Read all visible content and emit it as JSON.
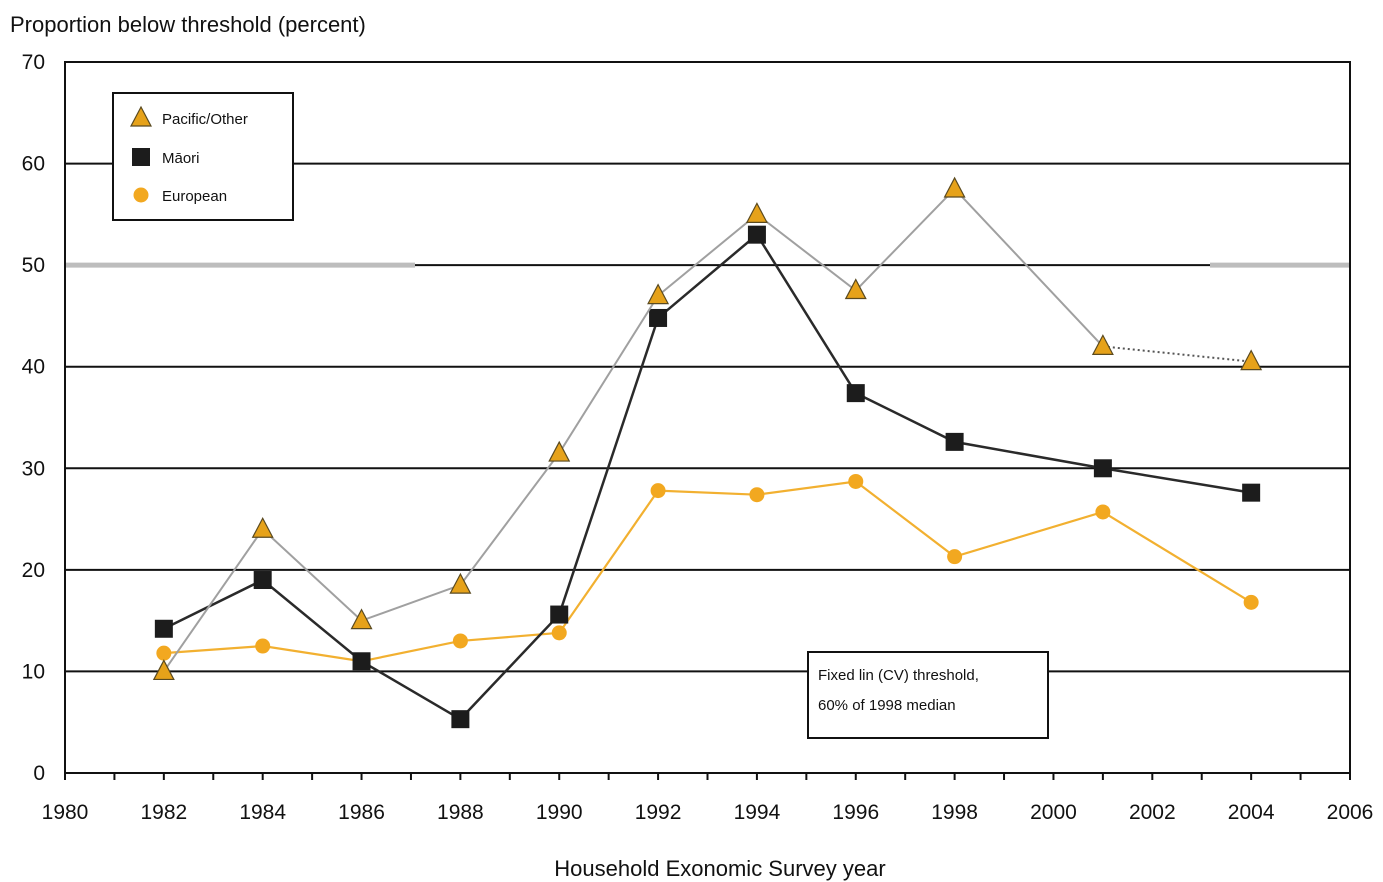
{
  "chart_data": {
    "type": "line",
    "ylabel": "Proportion below threshold (percent)",
    "xlabel": "Household Exonomic Survey year",
    "xlim": [
      1980,
      2006
    ],
    "ylim": [
      0,
      70
    ],
    "x_ticks": [
      1980,
      1982,
      1984,
      1986,
      1988,
      1990,
      1992,
      1994,
      1996,
      1998,
      2000,
      2002,
      2004,
      2006
    ],
    "y_ticks": [
      0,
      10,
      20,
      30,
      40,
      50,
      60,
      70
    ],
    "grid": "horizontal",
    "legend_position": "top-left",
    "series": [
      {
        "name": "Pacific/Other",
        "marker": "triangle",
        "line_color": "#a0a0a0",
        "marker_color": "#e6a21a",
        "x": [
          1982,
          1984,
          1986,
          1988,
          1990,
          1992,
          1994,
          1996,
          1998,
          2001,
          2004
        ],
        "y": [
          10,
          24,
          15,
          18.5,
          31.5,
          47,
          55,
          47.5,
          57.5,
          42,
          40.5
        ]
      },
      {
        "name": "Māori",
        "marker": "square",
        "line_color": "#2a2a2a",
        "marker_color": "#1c1c1c",
        "x": [
          1982,
          1984,
          1986,
          1988,
          1990,
          1992,
          1994,
          1996,
          1998,
          2001,
          2004
        ],
        "y": [
          14.2,
          19,
          11,
          5.3,
          15.6,
          44.8,
          53,
          37.4,
          32.6,
          30,
          27.6
        ]
      },
      {
        "name": "European",
        "marker": "circle",
        "line_color": "#f2b030",
        "marker_color": "#f2a820",
        "x": [
          1982,
          1984,
          1986,
          1988,
          1990,
          1992,
          1994,
          1996,
          1998,
          2001,
          2004
        ],
        "y": [
          11.8,
          12.5,
          11,
          13,
          13.8,
          27.8,
          27.4,
          28.7,
          21.3,
          25.7,
          16.8
        ]
      }
    ],
    "reference_line": {
      "value": 50,
      "color": "#bdbdbd"
    },
    "annotation": [
      "Fixed lin (CV) threshold,",
      "60% of 1998 median"
    ]
  }
}
